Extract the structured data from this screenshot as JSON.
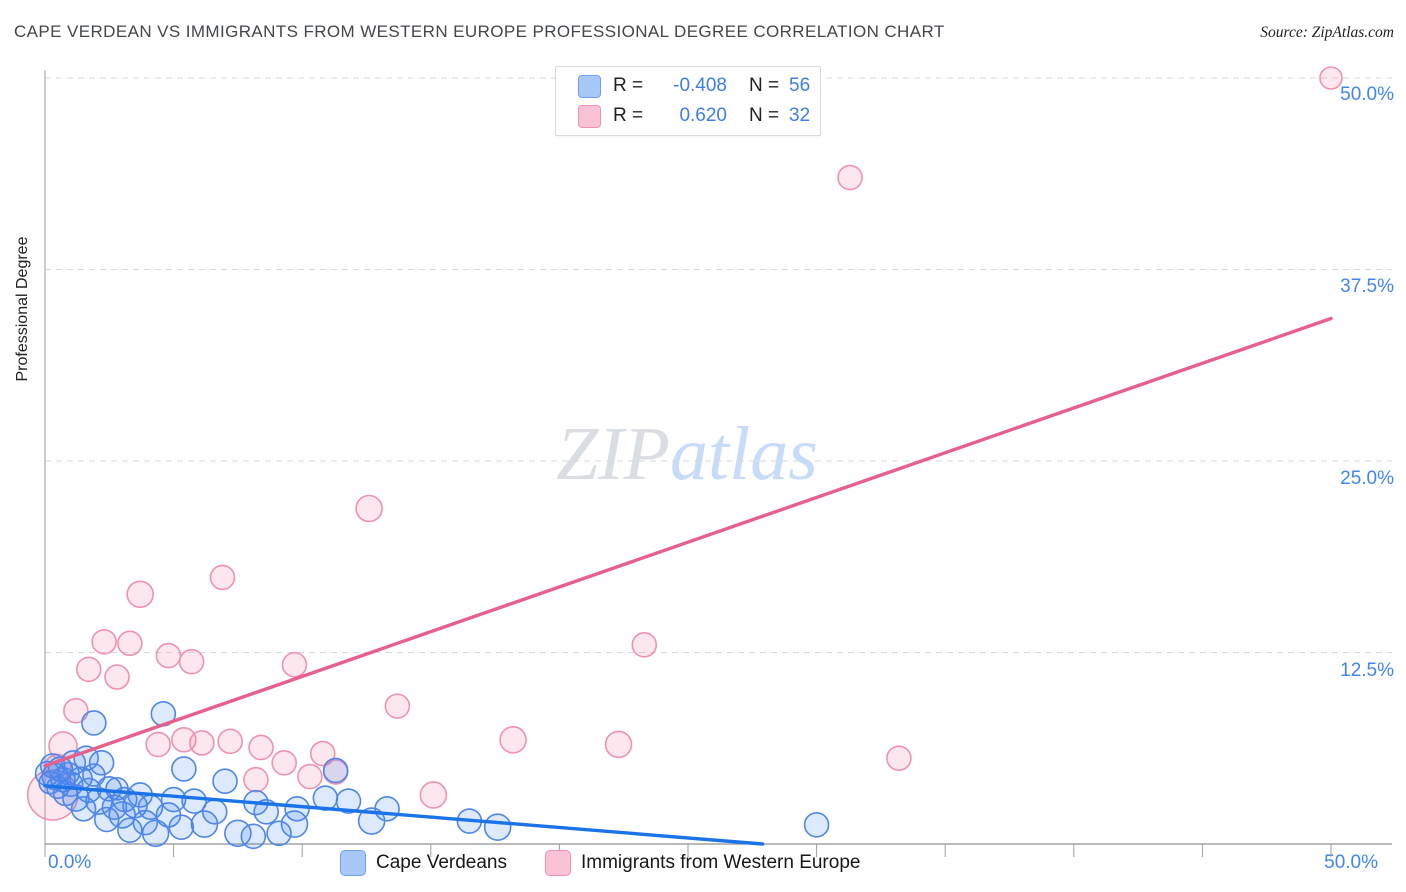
{
  "header": {
    "title": "CAPE VERDEAN VS IMMIGRANTS FROM WESTERN EUROPE PROFESSIONAL DEGREE CORRELATION CHART",
    "source_label": "Source: ZipAtlas.com"
  },
  "stats_box": {
    "rows": [
      {
        "series": "Cape Verdeans",
        "r_label": "R =",
        "r_value": "-0.408",
        "n_label": "N =",
        "n_value": "56"
      },
      {
        "series": "Immigrants from Western Europe",
        "r_label": "R =",
        "r_value": "0.620",
        "n_label": "N =",
        "n_value": "32"
      }
    ]
  },
  "watermark": {
    "part1": "ZIP",
    "part2": "atlas"
  },
  "y_axis": {
    "title": "Professional Degree",
    "tick_labels": [
      "50.0%",
      "37.5%",
      "25.0%",
      "12.5%"
    ]
  },
  "x_axis": {
    "min_label": "0.0%",
    "max_label": "50.0%"
  },
  "bottom_legend": {
    "items": [
      {
        "label": "Cape Verdeans",
        "fill": "#a9c8fa",
        "stroke": "#6fa0f6"
      },
      {
        "label": "Immigrants from Western Europe",
        "fill": "#fac3d5",
        "stroke": "#f291b2"
      }
    ]
  },
  "chart_data": {
    "type": "scatter",
    "xlabel": "",
    "ylabel": "Professional Degree",
    "xlim": [
      0,
      50
    ],
    "ylim": [
      0,
      50
    ],
    "x_tick_step_percent": 5,
    "y_gridline_percents": [
      12.5,
      25,
      37.5,
      50
    ],
    "grid": "dashed-horizontal",
    "legend_position": "bottom",
    "series": [
      {
        "name": "Immigrants from Western Europe",
        "color_stroke": "#f191b2",
        "color_fill": "rgba(243,146,177,0.22)",
        "trend": {
          "start": [
            0,
            5.1
          ],
          "end": [
            50,
            34.3
          ],
          "color": "#e75f8b"
        },
        "points": [
          [
            50.0,
            50.0,
            11
          ],
          [
            31.3,
            43.5,
            12
          ],
          [
            12.6,
            21.9,
            13
          ],
          [
            6.9,
            17.4,
            12
          ],
          [
            3.7,
            16.3,
            13
          ],
          [
            2.3,
            13.2,
            12
          ],
          [
            3.3,
            13.1,
            12
          ],
          [
            4.8,
            12.3,
            12
          ],
          [
            5.7,
            11.9,
            12
          ],
          [
            1.7,
            11.4,
            12
          ],
          [
            2.8,
            10.9,
            12
          ],
          [
            9.7,
            11.7,
            12
          ],
          [
            23.3,
            13.0,
            12
          ],
          [
            13.7,
            9.0,
            12
          ],
          [
            18.2,
            6.8,
            13
          ],
          [
            22.3,
            6.5,
            13
          ],
          [
            15.1,
            3.2,
            13
          ],
          [
            33.2,
            5.6,
            12
          ],
          [
            0.7,
            6.4,
            14
          ],
          [
            0.3,
            3.2,
            25
          ],
          [
            1.2,
            8.7,
            12
          ],
          [
            4.4,
            6.5,
            12
          ],
          [
            5.4,
            6.8,
            12
          ],
          [
            6.1,
            6.6,
            12
          ],
          [
            7.2,
            6.7,
            12
          ],
          [
            8.4,
            6.3,
            12
          ],
          [
            9.3,
            5.3,
            12
          ],
          [
            8.2,
            4.2,
            12
          ],
          [
            10.3,
            4.4,
            12
          ],
          [
            10.8,
            5.9,
            12
          ],
          [
            11.3,
            4.7,
            12
          ],
          [
            0.5,
            5.0,
            13
          ]
        ]
      },
      {
        "name": "Cape Verdeans",
        "color_stroke": "#4f87e8",
        "color_fill": "rgba(66,133,244,0.18)",
        "trend": {
          "start": [
            0,
            3.8
          ],
          "end": [
            27.9,
            0
          ],
          "color": "#1a73e8"
        },
        "points": [
          [
            0.1,
            4.6,
            12
          ],
          [
            0.2,
            4.0,
            11
          ],
          [
            0.3,
            5.1,
            12
          ],
          [
            0.4,
            4.4,
            13
          ],
          [
            0.5,
            3.7,
            11
          ],
          [
            0.6,
            4.9,
            12
          ],
          [
            0.7,
            4.2,
            12
          ],
          [
            0.8,
            3.3,
            12
          ],
          [
            0.9,
            4.6,
            11
          ],
          [
            1.0,
            3.9,
            12
          ],
          [
            1.1,
            5.3,
            12
          ],
          [
            1.2,
            3.0,
            13
          ],
          [
            1.4,
            4.3,
            11
          ],
          [
            1.5,
            2.3,
            12
          ],
          [
            1.6,
            5.6,
            12
          ],
          [
            1.7,
            3.5,
            12
          ],
          [
            1.9,
            7.9,
            12
          ],
          [
            1.9,
            4.5,
            11
          ],
          [
            2.1,
            2.8,
            13
          ],
          [
            2.2,
            5.3,
            12
          ],
          [
            2.4,
            1.6,
            12
          ],
          [
            2.5,
            3.6,
            12
          ],
          [
            2.7,
            2.4,
            12
          ],
          [
            2.8,
            3.6,
            11
          ],
          [
            3.0,
            1.9,
            13
          ],
          [
            3.1,
            2.9,
            12
          ],
          [
            3.3,
            0.9,
            12
          ],
          [
            3.5,
            2.5,
            12
          ],
          [
            3.7,
            3.2,
            12
          ],
          [
            3.9,
            1.4,
            12
          ],
          [
            4.1,
            2.4,
            12
          ],
          [
            4.3,
            0.7,
            13
          ],
          [
            4.6,
            8.5,
            12
          ],
          [
            4.8,
            1.9,
            12
          ],
          [
            5.0,
            2.9,
            12
          ],
          [
            5.3,
            1.1,
            12
          ],
          [
            5.4,
            4.9,
            12
          ],
          [
            5.8,
            2.8,
            12
          ],
          [
            6.2,
            1.3,
            13
          ],
          [
            6.6,
            2.1,
            12
          ],
          [
            7.0,
            4.1,
            12
          ],
          [
            7.5,
            0.7,
            13
          ],
          [
            8.1,
            0.5,
            12
          ],
          [
            8.2,
            2.7,
            12
          ],
          [
            8.6,
            2.1,
            12
          ],
          [
            9.1,
            0.7,
            12
          ],
          [
            9.7,
            1.3,
            13
          ],
          [
            9.8,
            2.3,
            12
          ],
          [
            10.9,
            3.0,
            12
          ],
          [
            11.3,
            4.8,
            12
          ],
          [
            11.8,
            2.8,
            12
          ],
          [
            12.7,
            1.5,
            13
          ],
          [
            13.3,
            2.3,
            12
          ],
          [
            16.5,
            1.5,
            12
          ],
          [
            17.6,
            1.1,
            13
          ],
          [
            30.0,
            1.25,
            12
          ]
        ]
      }
    ]
  }
}
